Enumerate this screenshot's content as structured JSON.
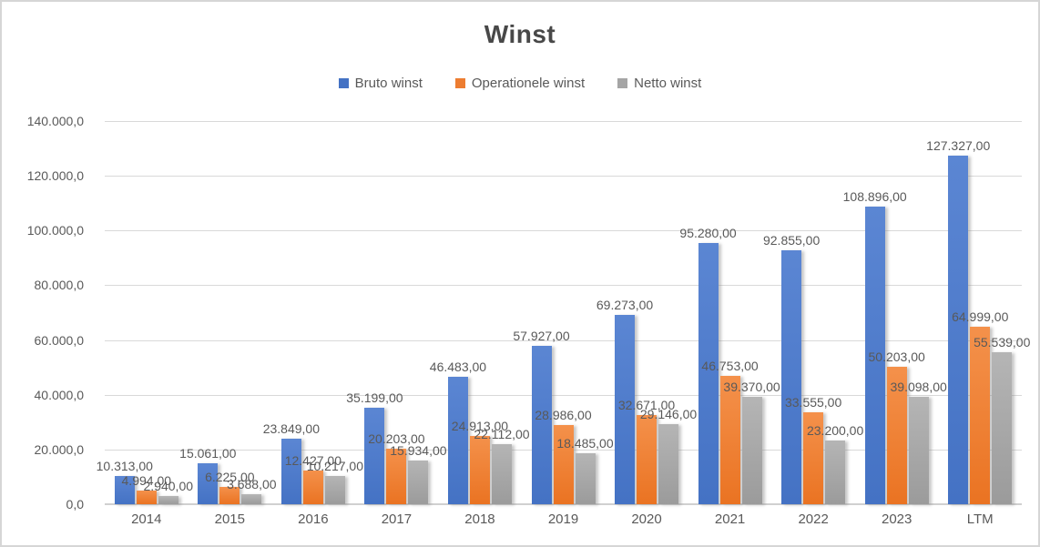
{
  "title": "Winst",
  "chart_data": {
    "type": "bar",
    "title": "Winst",
    "legend_position": "top",
    "grid": true,
    "xlabel": "",
    "ylabel": "",
    "ylim": [
      0,
      140000
    ],
    "ytick_step": 20000,
    "yticks": [
      {
        "value": 0,
        "label": "0,0"
      },
      {
        "value": 20000,
        "label": "20.000,0"
      },
      {
        "value": 40000,
        "label": "40.000,0"
      },
      {
        "value": 60000,
        "label": "60.000,0"
      },
      {
        "value": 80000,
        "label": "80.000,0"
      },
      {
        "value": 100000,
        "label": "100.000,0"
      },
      {
        "value": 120000,
        "label": "120.000,0"
      },
      {
        "value": 140000,
        "label": "140.000,0"
      }
    ],
    "categories": [
      "2014",
      "2015",
      "2016",
      "2017",
      "2018",
      "2019",
      "2020",
      "2021",
      "2022",
      "2023",
      "LTM"
    ],
    "series": [
      {
        "name": "Bruto winst",
        "color": "#4472C4",
        "values": [
          10313,
          15061,
          23849,
          35199,
          46483,
          57927,
          69273,
          95280,
          92855,
          108896,
          127327
        ],
        "labels": [
          "10.313,00",
          "15.061,00",
          "23.849,00",
          "35.199,00",
          "46.483,00",
          "57.927,00",
          "69.273,00",
          "95.280,00",
          "92.855,00",
          "108.896,00",
          "127.327,00"
        ]
      },
      {
        "name": "Operationele winst",
        "color": "#ED7D31",
        "values": [
          4994,
          6225,
          12427,
          20203,
          24913,
          28986,
          32671,
          46753,
          33555,
          50203,
          64999
        ],
        "labels": [
          "4.994,00",
          "6.225,00",
          "12.427,00",
          "20.203,00",
          "24.913,00",
          "28.986,00",
          "32.671,00",
          "46.753,00",
          "33.555,00",
          "50.203,00",
          "64.999,00"
        ]
      },
      {
        "name": "Netto winst",
        "color": "#A5A5A5",
        "values": [
          2940,
          3688,
          10217,
          15934,
          22112,
          18485,
          29146,
          39370,
          23200,
          39098,
          55539
        ],
        "labels": [
          "2.940,00",
          "3.688,00",
          "10.217,00",
          "15.934,00",
          "22.112,00",
          "18.485,00",
          "29.146,00",
          "39.370,00",
          "23.200,00",
          "39.098,00",
          "55.539,00"
        ]
      }
    ]
  }
}
